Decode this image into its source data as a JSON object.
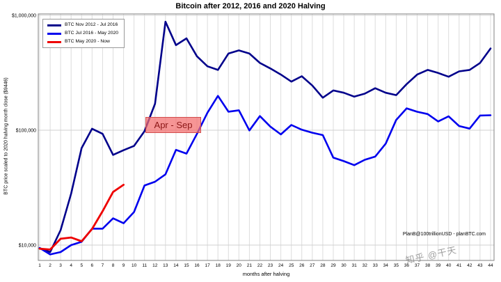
{
  "title": "Bitcoin after 2012, 2016 and 2020 Halving",
  "attribution": "PlanB@100trillionUSD  -  planBTC.com",
  "watermark": "知乎 @干天",
  "chart_data": {
    "type": "line",
    "title": "Bitcoin after 2012, 2016 and 2020 Halving",
    "x_axis": {
      "label": "months after halving",
      "ticks": [
        1,
        2,
        3,
        4,
        5,
        6,
        7,
        8,
        9,
        10,
        11,
        12,
        13,
        14,
        15,
        16,
        17,
        18,
        19,
        20,
        21,
        22,
        23,
        24,
        25,
        26,
        27,
        28,
        29,
        30,
        31,
        32,
        33,
        34,
        35,
        36,
        37,
        38,
        39,
        40,
        41,
        42,
        43,
        44
      ]
    },
    "y_axis": {
      "label": "BTC price scaled to 2020 halving month close ($9446)",
      "scale": "log",
      "tick_values": [
        10000,
        100000,
        1000000
      ],
      "tick_labels": [
        "$10,000",
        "$100,000",
        "$1,000,000"
      ],
      "range": [
        7500,
        1100000
      ]
    },
    "grid": true,
    "legend_position": "top-left",
    "annotation": {
      "text": "Apr - Sep",
      "text_color": "#8b1515",
      "bg_color": "#f36c6c"
    },
    "series": [
      {
        "name": "BTC Nov 2012 - Jul 2016",
        "color": "#00008b",
        "width": 2.6,
        "values": [
          9400,
          8700,
          13500,
          28000,
          70000,
          103000,
          93000,
          61000,
          67000,
          73000,
          98000,
          170000,
          880000,
          550000,
          630000,
          440000,
          360000,
          335000,
          465000,
          495000,
          465000,
          385000,
          345000,
          305000,
          265000,
          295000,
          245000,
          192000,
          222000,
          212000,
          196000,
          208000,
          232000,
          212000,
          202000,
          252000,
          305000,
          335000,
          315000,
          292000,
          325000,
          335000,
          385000,
          515000
        ]
      },
      {
        "name": "BTC Jul 2016 - May 2020",
        "color": "#0000ee",
        "width": 2.6,
        "values": [
          9450,
          8300,
          8700,
          10000,
          10700,
          13900,
          13900,
          17100,
          15500,
          19400,
          33000,
          35600,
          41300,
          67500,
          62600,
          92900,
          142000,
          199000,
          145000,
          149000,
          99600,
          132700,
          107600,
          92000,
          111000,
          101000,
          95100,
          90700,
          57700,
          53800,
          49600,
          55300,
          58900,
          76400,
          123000,
          155000,
          144800,
          138300,
          119300,
          132100,
          108700,
          103300,
          134300,
          135000
        ]
      },
      {
        "name": "BTC May 2020 - Now",
        "color": "#ee0000",
        "width": 2.8,
        "values": [
          9300,
          9150,
          11350,
          11650,
          10800,
          13800,
          19700,
          29000,
          33500
        ]
      }
    ]
  }
}
